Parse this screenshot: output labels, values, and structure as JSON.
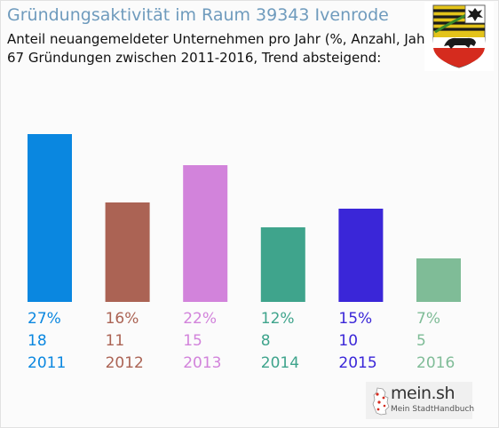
{
  "header": {
    "title": "Gründungsaktivität im Raum 39343 Ivenrode",
    "subtitle_line1": "Anteil neuangemeldeter Unternehmen pro Jahr (%, Anzahl, Jahr)",
    "subtitle_line2": "67 Gründungen zwischen 2011-2016, Trend absteigend:"
  },
  "emblem": {
    "name": "coat-of-arms-icon",
    "colors": {
      "gold": "#e3c31a",
      "black": "#1a1a1a",
      "red": "#d52b1e",
      "white": "#ffffff"
    }
  },
  "branding": {
    "name": "mein.sh",
    "tagline": "Mein StadtHandbuch"
  },
  "chart_data": {
    "type": "bar",
    "categories": [
      "2011",
      "2012",
      "2013",
      "2014",
      "2015",
      "2016"
    ],
    "values": [
      27,
      16,
      22,
      12,
      15,
      7
    ],
    "value_labels": [
      "27%",
      "16%",
      "22%",
      "12%",
      "15%",
      "7%"
    ],
    "counts": [
      18,
      11,
      15,
      8,
      10,
      5
    ],
    "colors": [
      "#0a87e0",
      "#ab6354",
      "#d283db",
      "#3fa48c",
      "#3a26d8",
      "#7fbc97"
    ],
    "ylim": [
      0,
      27
    ],
    "grid": false
  }
}
